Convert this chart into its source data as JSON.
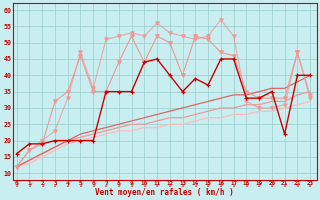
{
  "xlabel": "Vent moyen/en rafales ( km/h )",
  "x": [
    0,
    1,
    2,
    3,
    4,
    5,
    6,
    7,
    8,
    9,
    10,
    11,
    12,
    13,
    14,
    15,
    16,
    17,
    18,
    19,
    20,
    21,
    22,
    23
  ],
  "line_light_upper": [
    12,
    17,
    20,
    23,
    33,
    47,
    36,
    51,
    52,
    53,
    52,
    56,
    53,
    52,
    51,
    52,
    57,
    52,
    32,
    30,
    30,
    31,
    47,
    34
  ],
  "line_light_lower": [
    12,
    17,
    19,
    32,
    35,
    46,
    35,
    35,
    44,
    52,
    44,
    52,
    50,
    40,
    52,
    51,
    47,
    46,
    35,
    33,
    33,
    33,
    47,
    33
  ],
  "line_dark_jagged": [
    16,
    19,
    19,
    20,
    20,
    20,
    20,
    35,
    35,
    35,
    44,
    45,
    40,
    35,
    39,
    37,
    45,
    45,
    33,
    33,
    35,
    22,
    40,
    40
  ],
  "line_trend_dark": [
    12,
    14,
    16,
    18,
    20,
    22,
    23,
    24,
    25,
    26,
    27,
    28,
    29,
    30,
    31,
    32,
    33,
    34,
    34,
    35,
    36,
    36,
    38,
    40
  ],
  "line_trend_mid": [
    12,
    14,
    16,
    18,
    20,
    21,
    22,
    23,
    24,
    25,
    25,
    26,
    27,
    27,
    28,
    29,
    30,
    30,
    31,
    31,
    32,
    32,
    34,
    35
  ],
  "line_trend_light": [
    12,
    13,
    15,
    17,
    19,
    20,
    21,
    22,
    23,
    23,
    24,
    24,
    25,
    25,
    26,
    27,
    27,
    28,
    28,
    29,
    29,
    30,
    31,
    32
  ],
  "ylim_min": 8,
  "ylim_max": 62,
  "xlim_min": -0.3,
  "xlim_max": 23.5,
  "yticks": [
    10,
    15,
    20,
    25,
    30,
    35,
    40,
    45,
    50,
    55,
    60
  ],
  "xticks": [
    0,
    1,
    2,
    3,
    4,
    5,
    6,
    7,
    8,
    9,
    10,
    11,
    12,
    13,
    14,
    15,
    16,
    17,
    18,
    19,
    20,
    21,
    22,
    23
  ],
  "bg_color": "#c8eef0",
  "grid_color": "#99cccc",
  "color_dark_red": "#cc0000",
  "color_mid_red": "#dd6666",
  "color_light_red": "#ee9999",
  "color_very_light": "#ffbbbb"
}
